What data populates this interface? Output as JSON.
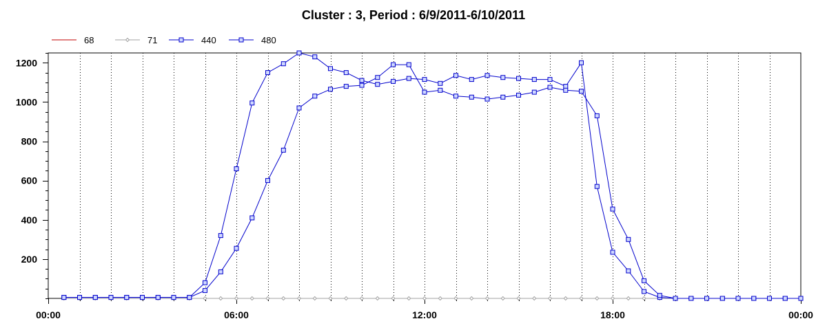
{
  "chart_data": {
    "type": "line",
    "title": "Cluster : 3, Period : 6/9/2011-6/10/2011",
    "x_ticks": [
      "00:00",
      "06:00",
      "12:00",
      "18:00",
      "00:00"
    ],
    "y_ticks": [
      200,
      400,
      600,
      800,
      1000,
      1200
    ],
    "xlim_hours": [
      0,
      24
    ],
    "ylim": [
      0,
      1250
    ],
    "grid": {
      "vertical_dotted": true,
      "horizontal": false
    },
    "legend_position": "top-left",
    "x_hours": [
      0.5,
      1.0,
      1.5,
      2.0,
      2.5,
      3.0,
      3.5,
      4.0,
      4.5,
      5.0,
      5.5,
      6.0,
      6.5,
      7.0,
      7.5,
      8.0,
      8.5,
      9.0,
      9.5,
      10.0,
      10.5,
      11.0,
      11.5,
      12.0,
      12.5,
      13.0,
      13.5,
      14.0,
      14.5,
      15.0,
      15.5,
      16.0,
      16.5,
      17.0,
      17.5,
      18.0,
      18.5,
      19.0,
      19.5,
      20.0,
      20.5,
      21.0,
      21.5,
      22.0,
      22.5,
      23.0,
      23.5,
      24.0
    ],
    "series": [
      {
        "name": "68",
        "color": "#c00000",
        "marker": "none",
        "values": []
      },
      {
        "name": "71",
        "color": "#a0a0a0",
        "marker": "diamond",
        "values": [
          0,
          0,
          0,
          0,
          0,
          0,
          0,
          0,
          0,
          0,
          0,
          0,
          0,
          0,
          0,
          0,
          0,
          0,
          0,
          0,
          0,
          0,
          0,
          0,
          0,
          0,
          0,
          0,
          0,
          0,
          0,
          0,
          0,
          0,
          0,
          0,
          0,
          0,
          0,
          0,
          0,
          0,
          0,
          0,
          0,
          0,
          0,
          0
        ]
      },
      {
        "name": "440",
        "color": "#0000cc",
        "marker": "square",
        "values": [
          5,
          5,
          5,
          5,
          5,
          5,
          5,
          5,
          5,
          80,
          320,
          660,
          995,
          1150,
          1195,
          1250,
          1230,
          1170,
          1150,
          1110,
          1090,
          1105,
          1120,
          1115,
          1095,
          1135,
          1115,
          1135,
          1125,
          1120,
          1115,
          1115,
          1080,
          1200,
          570,
          235,
          140,
          35,
          5,
          0,
          0,
          0,
          0,
          0,
          0,
          0,
          0,
          0
        ]
      },
      {
        "name": "480",
        "color": "#0000cc",
        "marker": "square",
        "values": [
          5,
          5,
          5,
          5,
          5,
          5,
          5,
          5,
          5,
          40,
          135,
          255,
          410,
          600,
          755,
          970,
          1030,
          1065,
          1080,
          1085,
          1125,
          1190,
          1190,
          1050,
          1060,
          1030,
          1025,
          1015,
          1025,
          1035,
          1050,
          1075,
          1060,
          1055,
          930,
          455,
          300,
          90,
          15,
          0,
          0,
          0,
          0,
          0,
          0,
          0,
          0,
          0
        ]
      }
    ]
  }
}
